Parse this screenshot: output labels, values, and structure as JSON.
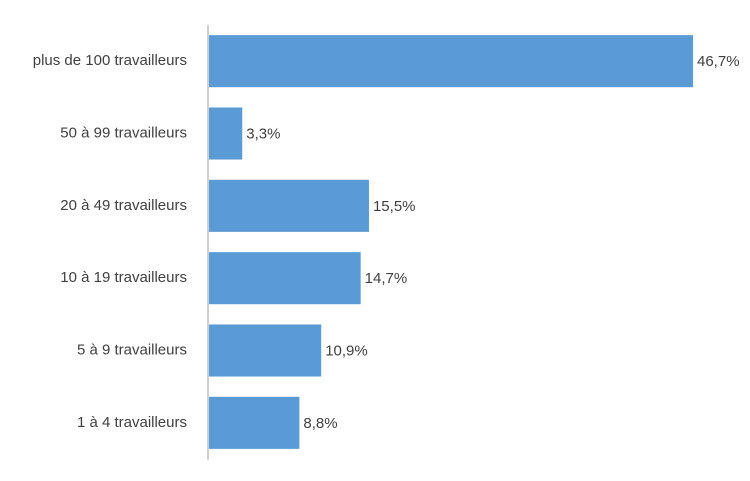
{
  "chart_data": {
    "type": "bar",
    "orientation": "horizontal",
    "categories": [
      "plus de 100 travailleurs",
      "50 à 99 travailleurs",
      "20 à 49 travailleurs",
      "10 à 19 travailleurs",
      "5 à 9 travailleurs",
      "1 à 4 travailleurs"
    ],
    "values": [
      46.7,
      3.3,
      15.5,
      14.7,
      10.9,
      8.8
    ],
    "value_labels": [
      "46,7%",
      "3,3%",
      "15,5%",
      "14,7%",
      "10,9%",
      "8,8%"
    ],
    "color": "#5b9bd5"
  }
}
